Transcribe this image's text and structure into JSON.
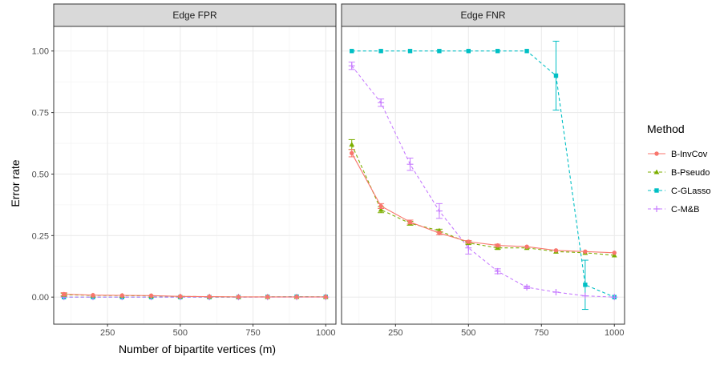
{
  "chart_data": {
    "type": "line",
    "xlabel": "Number of bipartite vertices (m)",
    "ylabel": "Error rate",
    "x_ticks": [
      "250",
      "500",
      "750",
      "1000"
    ],
    "y_ticks": [
      "0.00",
      "0.25",
      "0.50",
      "0.75",
      "1.00"
    ],
    "xlim": [
      65,
      1035
    ],
    "ylim": [
      -0.11,
      1.1
    ],
    "grid": true,
    "legend": {
      "title": "Method",
      "position": "right"
    },
    "x": [
      100,
      200,
      300,
      400,
      500,
      600,
      700,
      800,
      900,
      1000
    ],
    "series": [
      {
        "name": "B-InvCov",
        "color": "#F8766D",
        "marker": "circle",
        "dash": "solid"
      },
      {
        "name": "B-Pseudo",
        "color": "#7CAE00",
        "marker": "triangle",
        "dash": "dashed"
      },
      {
        "name": "C-GLasso",
        "color": "#00BFC4",
        "marker": "square",
        "dash": "dashed"
      },
      {
        "name": "C-M&B",
        "color": "#C77CFF",
        "marker": "plus",
        "dash": "dashed"
      }
    ],
    "panels": [
      {
        "title": "Edge FPR",
        "values": {
          "B-InvCov": [
            0.012,
            0.008,
            0.007,
            0.006,
            0.003,
            0.002,
            0.001,
            0.001,
            0.001,
            0.001
          ],
          "B-Pseudo": [
            0.01,
            0.007,
            0.006,
            0.005,
            0.003,
            0.002,
            0.001,
            0.001,
            0.001,
            0.001
          ],
          "C-GLasso": [
            0.0,
            0.0,
            0.0,
            0.0,
            0.0,
            0.0,
            0.0,
            0.001,
            0.002,
            0.001
          ],
          "C-M&B": [
            0.0,
            0.0,
            0.0,
            0.0,
            0.0,
            0.0,
            0.0,
            0.0,
            0.0,
            0.0
          ]
        },
        "errors": {
          "B-InvCov": [
            0.006,
            0.003,
            0.003,
            0.002,
            0.002,
            0.001,
            0.001,
            0.001,
            0.001,
            0.001
          ],
          "B-Pseudo": [
            0.006,
            0.003,
            0.003,
            0.002,
            0.002,
            0.001,
            0.001,
            0.001,
            0.001,
            0.001
          ],
          "C-GLasso": [
            0,
            0,
            0,
            0,
            0,
            0,
            0,
            0.001,
            0.002,
            0.001
          ],
          "C-M&B": [
            0.003,
            0.002,
            0.002,
            0.002,
            0.001,
            0.001,
            0.001,
            0.001,
            0.001,
            0.001
          ]
        }
      },
      {
        "title": "Edge FNR",
        "values": {
          "B-InvCov": [
            0.585,
            0.37,
            0.305,
            0.26,
            0.225,
            0.21,
            0.205,
            0.19,
            0.185,
            0.18
          ],
          "B-Pseudo": [
            0.62,
            0.355,
            0.3,
            0.27,
            0.22,
            0.2,
            0.2,
            0.185,
            0.18,
            0.17
          ],
          "C-GLasso": [
            1.0,
            1.0,
            1.0,
            1.0,
            1.0,
            1.0,
            1.0,
            0.9,
            0.05,
            0.0
          ],
          "C-M&B": [
            0.94,
            0.79,
            0.54,
            0.35,
            0.2,
            0.105,
            0.04,
            0.02,
            0.005,
            0.0
          ]
        },
        "errors": {
          "B-InvCov": [
            0.015,
            0.01,
            0.008,
            0.006,
            0.005,
            0.005,
            0.004,
            0.004,
            0.004,
            0.004
          ],
          "B-Pseudo": [
            0.02,
            0.012,
            0.008,
            0.006,
            0.005,
            0.005,
            0.004,
            0.004,
            0.004,
            0.004
          ],
          "C-GLasso": [
            0,
            0,
            0,
            0,
            0,
            0,
            0,
            0.14,
            0.1,
            0.0
          ],
          "C-M&B": [
            0.015,
            0.015,
            0.025,
            0.03,
            0.025,
            0.01,
            0.005,
            0.003,
            0.002,
            0.001
          ]
        }
      }
    ]
  }
}
